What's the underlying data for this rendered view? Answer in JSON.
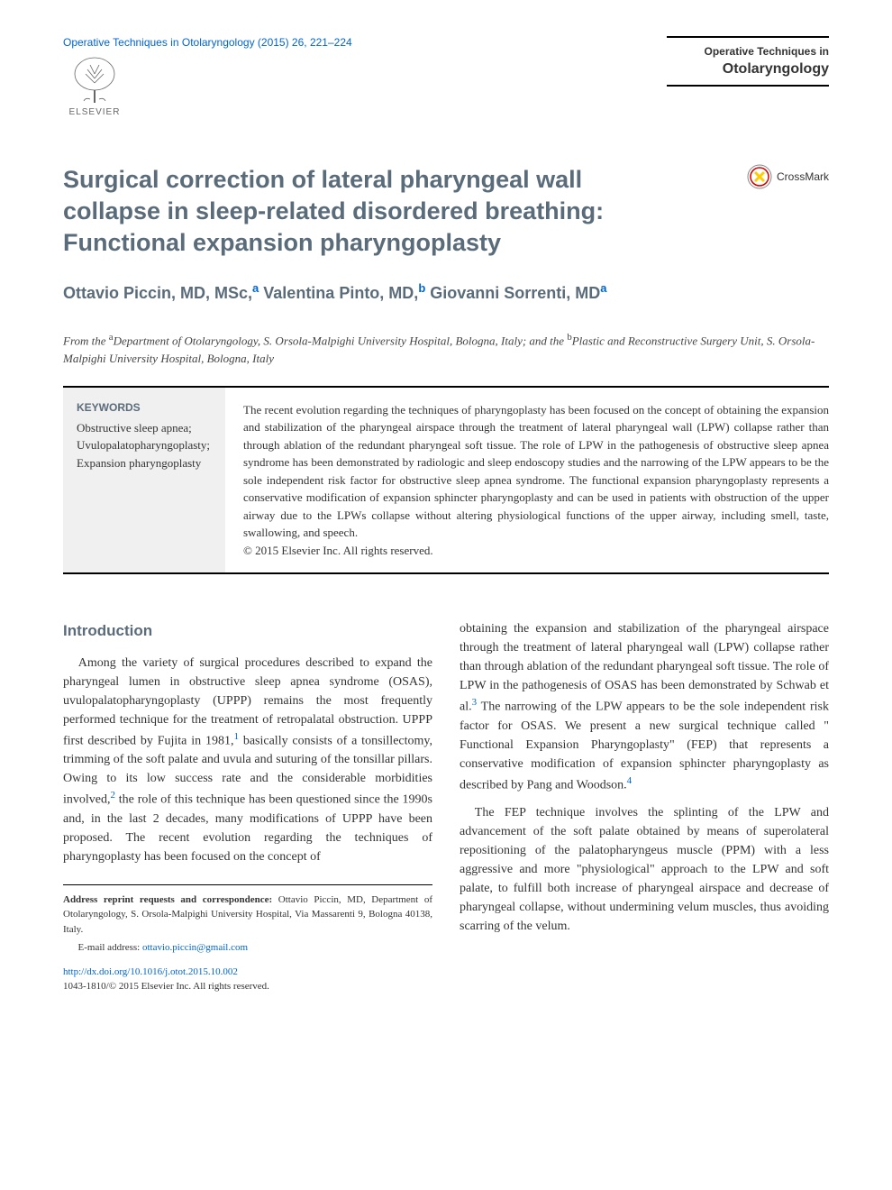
{
  "header": {
    "citation": "Operative Techniques in Otolaryngology (2015) 26, 221–224",
    "publisher": "ELSEVIER",
    "journal_line1": "Operative Techniques in",
    "journal_line2": "Otolaryngology"
  },
  "article": {
    "title": "Surgical correction of lateral pharyngeal wall collapse in sleep-related disordered breathing: Functional expansion pharyngoplasty",
    "crossmark": "CrossMark",
    "authors_html": "Ottavio Piccin, MD, MSc,<sup>a</sup> Valentina Pinto, MD,<sup>b</sup> Giovanni Sorrenti, MD<sup>a</sup>",
    "affiliations_html": "From the <sup>a</sup>Department of Otolaryngology, S. Orsola-Malpighi University Hospital, Bologna, Italy; and the <sup>b</sup>Plastic and Reconstructive Surgery Unit, S. Orsola-Malpighi University Hospital, Bologna, Italy"
  },
  "keywords": {
    "heading": "KEYWORDS",
    "list": "Obstructive sleep apnea;\nUvulopalatopharyngoplasty;\nExpansion pharyngoplasty"
  },
  "abstract": {
    "text": "The recent evolution regarding the techniques of pharyngoplasty has been focused on the concept of obtaining the expansion and stabilization of the pharyngeal airspace through the treatment of lateral pharyngeal wall (LPW) collapse rather than through ablation of the redundant pharyngeal soft tissue. The role of LPW in the pathogenesis of obstructive sleep apnea syndrome has been demonstrated by radiologic and sleep endoscopy studies and the narrowing of the LPW appears to be the sole independent risk factor for obstructive sleep apnea syndrome. The functional expansion pharyngoplasty represents a conservative modification of expansion sphincter pharyngoplasty and can be used in patients with obstruction of the upper airway due to the LPWs collapse without altering physiological functions of the upper airway, including smell, taste, swallowing, and speech.",
    "copyright": "© 2015 Elsevier Inc. All rights reserved."
  },
  "body": {
    "intro_heading": "Introduction",
    "col1_p1_html": "Among the variety of surgical procedures described to expand the pharyngeal lumen in obstructive sleep apnea syndrome (OSAS), uvulopalatopharyngoplasty (UPPP) remains the most frequently performed technique for the treatment of retropalatal obstruction. UPPP first described by Fujita in 1981,<span class=\"ref-sup\">1</span> basically consists of a tonsillectomy, trimming of the soft palate and uvula and suturing of the tonsillar pillars. Owing to its low success rate and the considerable morbidities involved,<span class=\"ref-sup\">2</span> the role of this technique has been questioned since the 1990s and, in the last 2 decades, many modifications of UPPP have been proposed. The recent evolution regarding the techniques of pharyngoplasty has been focused on the concept of",
    "col2_p1_html": "obtaining the expansion and stabilization of the pharyngeal airspace through the treatment of lateral pharyngeal wall (LPW) collapse rather than through ablation of the redundant pharyngeal soft tissue. The role of LPW in the pathogenesis of OSAS has been demonstrated by Schwab et al.<span class=\"ref-sup\">3</span> The narrowing of the LPW appears to be the sole independent risk factor for OSAS. We present a new surgical technique called \" Functional Expansion Pharyngoplasty\" (FEP) that represents a conservative modification of expansion sphincter pharyngoplasty as described by Pang and Woodson.<span class=\"ref-sup\">4</span>",
    "col2_p2_html": "The FEP technique involves the splinting of the LPW and advancement of the soft palate obtained by means of superolateral repositioning of the palatopharyngeus muscle (PPM) with a less aggressive and more \"physiological\" approach to the LPW and soft palate, to fulfill both increase of pharyngeal airspace and decrease of pharyngeal collapse, without undermining velum muscles, thus avoiding scarring of the velum."
  },
  "footer": {
    "correspondence_label": "Address reprint requests and correspondence:",
    "correspondence_text": " Ottavio Piccin, MD, Department of Otolaryngology, S. Orsola-Malpighi University Hospital, Via Massarenti 9, Bologna 40138, Italy.",
    "email_label": "E-mail address: ",
    "email": "ottavio.piccin@gmail.com",
    "doi": "http://dx.doi.org/10.1016/j.otot.2015.10.002",
    "issn_copyright": "1043-1810/© 2015 Elsevier Inc. All rights reserved."
  },
  "colors": {
    "link": "#0066cc",
    "heading": "#5a6b7a",
    "text": "#333333",
    "keywords_bg": "#f0f0f0",
    "elsevier_orange": "#ff8c00"
  }
}
